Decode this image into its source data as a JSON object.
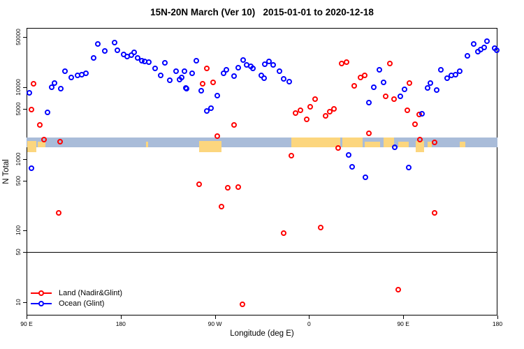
{
  "title": "15N-20N March (Ver 10)   2015-01-01 to 2020-12-18",
  "chart_data": {
    "type": "scatter",
    "title": "15N-20N March (Ver 10)   2015-01-01 to 2020-12-18",
    "xlabel": "Longitude (deg E)",
    "ylabel": "N Total",
    "x_axis": {
      "note": "longitude axis starts at 90E and wraps eastward through 180, 90W, 0, 90E to 180 (450 degrees total, stored as 90..540)",
      "min": 90,
      "max": 540,
      "ticks": [
        {
          "v": 90,
          "label": "90 E"
        },
        {
          "v": 180,
          "label": "180"
        },
        {
          "v": 270,
          "label": "90 W"
        },
        {
          "v": 360,
          "label": "0"
        },
        {
          "v": 450,
          "label": "90 E"
        },
        {
          "v": 540,
          "label": "180"
        }
      ]
    },
    "y_axis": {
      "scale": "log",
      "min": 6.5,
      "max": 67000,
      "ticks": [
        {
          "v": 50000,
          "label": "50000"
        },
        {
          "v": 10000,
          "label": "10000"
        },
        {
          "v": 5000,
          "label": "5000"
        },
        {
          "v": 1000,
          "label": "1000"
        },
        {
          "v": 500,
          "label": "500"
        },
        {
          "v": 100,
          "label": "100"
        },
        {
          "v": 50,
          "label": "50"
        },
        {
          "v": 10,
          "label": "10"
        }
      ]
    },
    "grid": false,
    "hline_value": 50,
    "map_band": {
      "description": "decorative 15N-20N world-map strip across plot",
      "top_value": 2000,
      "bottom_value": 1450,
      "ocean_color": "#a9bcd9",
      "land_color": "#fcd67e",
      "land_patches": [
        {
          "from": 91,
          "to": 99.5,
          "style": "dip"
        },
        {
          "from": 101,
          "to": 108,
          "style": "low"
        },
        {
          "from": 204,
          "to": 206,
          "style": "low"
        },
        {
          "from": 255,
          "to": 276,
          "style": "dip"
        },
        {
          "from": 343,
          "to": 390,
          "style": "full"
        },
        {
          "from": 392,
          "to": 411,
          "style": "full"
        },
        {
          "from": 413,
          "to": 428,
          "style": "low"
        },
        {
          "from": 431,
          "to": 441,
          "style": "full"
        },
        {
          "from": 445,
          "to": 455,
          "style": "low"
        },
        {
          "from": 462,
          "to": 470,
          "style": "dip"
        },
        {
          "from": 473,
          "to": 477,
          "style": "low"
        },
        {
          "from": 504,
          "to": 509,
          "style": "low"
        }
      ]
    },
    "legend": {
      "position": "bottom-left"
    },
    "series": [
      {
        "name": "Land (Nadir&Glint)",
        "color": "#ff0000",
        "points": [
          [
            97,
            11100
          ],
          [
            95,
            4900
          ],
          [
            103,
            2950
          ],
          [
            107,
            1850
          ],
          [
            122,
            1730
          ],
          [
            121,
            177
          ],
          [
            262,
            18500
          ],
          [
            258,
            11100
          ],
          [
            268,
            11600
          ],
          [
            272,
            2070
          ],
          [
            288,
            3010
          ],
          [
            255,
            439
          ],
          [
            282,
            392
          ],
          [
            292,
            402
          ],
          [
            276,
            216
          ],
          [
            296,
            9.4
          ],
          [
            336,
            93
          ],
          [
            371,
            109
          ],
          [
            343,
            1110
          ],
          [
            347,
            4390
          ],
          [
            352,
            4790
          ],
          [
            358,
            3600
          ],
          [
            361,
            5350
          ],
          [
            366,
            6820
          ],
          [
            376,
            4020
          ],
          [
            380,
            4580
          ],
          [
            384,
            5010
          ],
          [
            388,
            1420
          ],
          [
            391,
            21600
          ],
          [
            396,
            22500
          ],
          [
            403,
            10400
          ],
          [
            409,
            13600
          ],
          [
            413,
            14500
          ],
          [
            417,
            2260
          ],
          [
            433,
            7460
          ],
          [
            437,
            21600
          ],
          [
            441,
            6820
          ],
          [
            445,
            15
          ],
          [
            454,
            4790
          ],
          [
            456,
            11400
          ],
          [
            461,
            3080
          ],
          [
            465,
            4200
          ],
          [
            466,
            1850
          ],
          [
            480,
            1690
          ],
          [
            480,
            177
          ]
        ]
      },
      {
        "name": "Ocean (Glint)",
        "color": "#0000ff",
        "points": [
          [
            93,
            8330
          ],
          [
            95,
            746
          ],
          [
            110,
            4490
          ],
          [
            114,
            9950
          ],
          [
            117,
            11400
          ],
          [
            123,
            9510
          ],
          [
            127,
            16900
          ],
          [
            133,
            13600
          ],
          [
            139,
            14500
          ],
          [
            143,
            15100
          ],
          [
            147,
            15800
          ],
          [
            154,
            25800
          ],
          [
            158,
            40100
          ],
          [
            165,
            32100
          ],
          [
            174,
            41900
          ],
          [
            177,
            32800
          ],
          [
            183,
            28800
          ],
          [
            186,
            26900
          ],
          [
            190,
            28100
          ],
          [
            193,
            30700
          ],
          [
            196,
            25800
          ],
          [
            200,
            23600
          ],
          [
            203,
            23100
          ],
          [
            207,
            22600
          ],
          [
            213,
            18500
          ],
          [
            218,
            14500
          ],
          [
            222,
            22100
          ],
          [
            227,
            12400
          ],
          [
            233,
            16600
          ],
          [
            236,
            12700
          ],
          [
            238,
            13600
          ],
          [
            241,
            16900
          ],
          [
            242,
            9730
          ],
          [
            243,
            9510
          ],
          [
            248,
            15500
          ],
          [
            252,
            23600
          ],
          [
            257,
            8900
          ],
          [
            262,
            4690
          ],
          [
            266,
            5120
          ],
          [
            272,
            7620
          ],
          [
            278,
            15800
          ],
          [
            281,
            17700
          ],
          [
            288,
            14200
          ],
          [
            292,
            18900
          ],
          [
            297,
            24100
          ],
          [
            300,
            20600
          ],
          [
            304,
            19800
          ],
          [
            306,
            18500
          ],
          [
            314,
            14500
          ],
          [
            317,
            13300
          ],
          [
            318,
            21100
          ],
          [
            322,
            23100
          ],
          [
            326,
            20600
          ],
          [
            332,
            16900
          ],
          [
            336,
            13000
          ],
          [
            341,
            12100
          ],
          [
            398,
            1140
          ],
          [
            401,
            781
          ],
          [
            414,
            560
          ],
          [
            417,
            6110
          ],
          [
            422,
            9950
          ],
          [
            427,
            17700
          ],
          [
            431,
            11600
          ],
          [
            442,
            1450
          ],
          [
            447,
            7460
          ],
          [
            451,
            9290
          ],
          [
            455,
            764
          ],
          [
            468,
            4290
          ],
          [
            473,
            9730
          ],
          [
            476,
            11400
          ],
          [
            482,
            9100
          ],
          [
            486,
            17700
          ],
          [
            492,
            13300
          ],
          [
            496,
            14500
          ],
          [
            500,
            15100
          ],
          [
            504,
            16600
          ],
          [
            511,
            27500
          ],
          [
            517,
            40100
          ],
          [
            521,
            31400
          ],
          [
            524,
            33600
          ],
          [
            527,
            35900
          ],
          [
            530,
            43800
          ],
          [
            537,
            35100
          ],
          [
            539,
            32800
          ]
        ]
      }
    ]
  }
}
